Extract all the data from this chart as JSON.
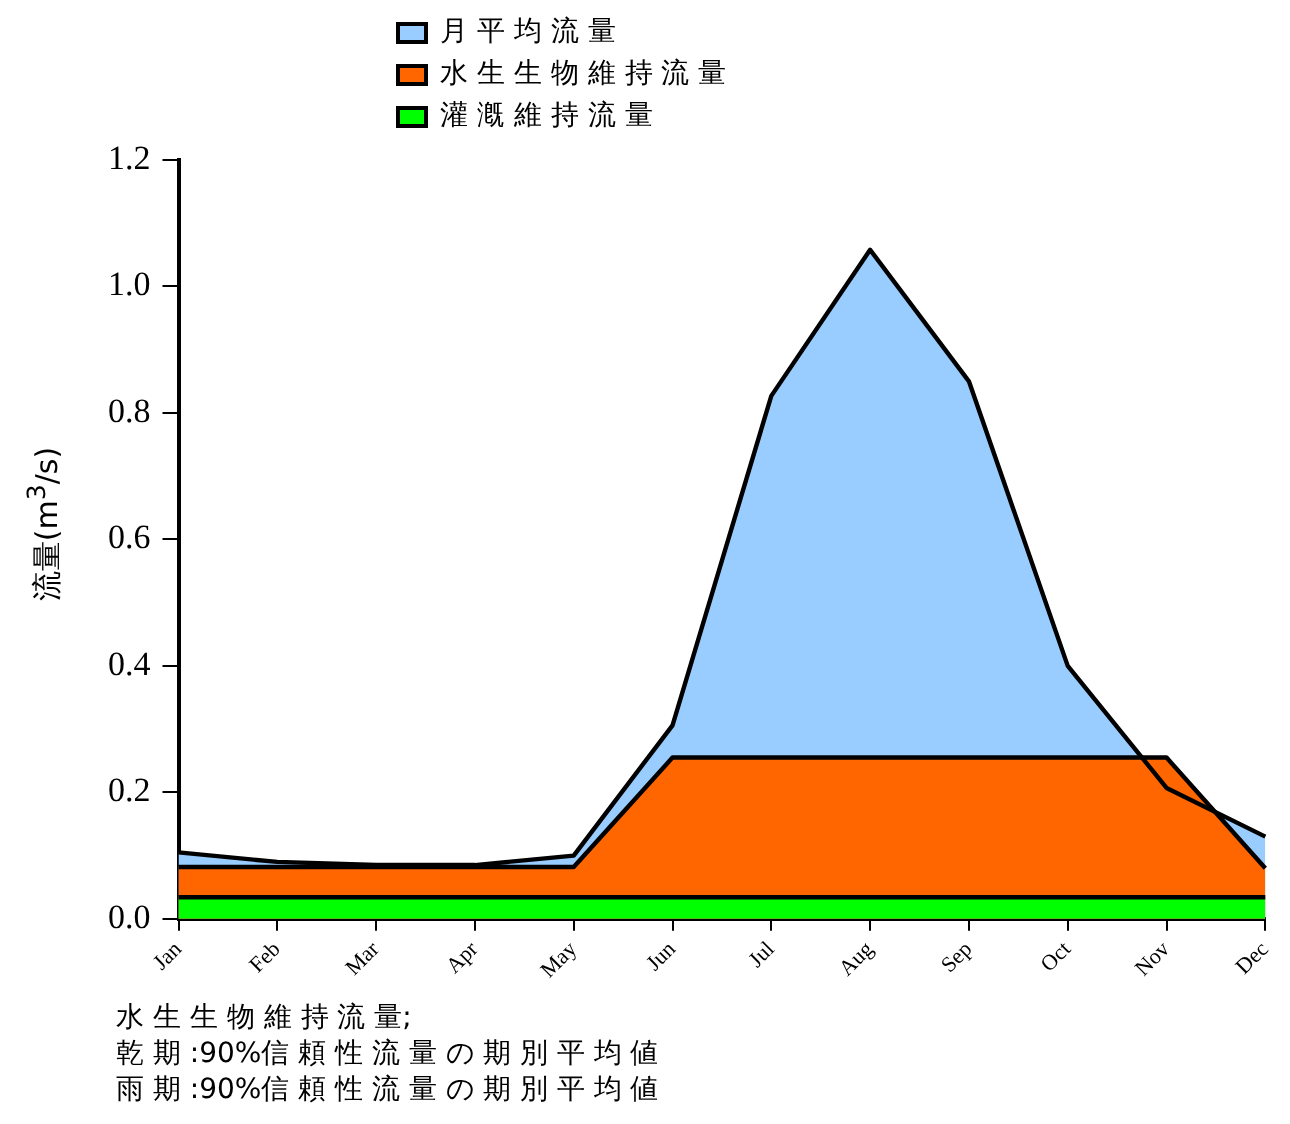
{
  "chart_data": {
    "type": "area",
    "ylabel": "流量(m$^{3}$/s)",
    "categories": [
      "Jan",
      "Feb",
      "Mar",
      "Apr",
      "May",
      "Jun",
      "Jul",
      "Aug",
      "Sep",
      "Oct",
      "Nov",
      "Dec"
    ],
    "series": [
      {
        "name": "月 平 均 流 量",
        "color": "#99ccff",
        "values": [
          0.105,
          0.09,
          0.085,
          0.085,
          0.1,
          0.306,
          0.827,
          1.058,
          0.85,
          0.4,
          0.207,
          0.13
        ]
      },
      {
        "name": "水 生 生 物 維 持 流 量",
        "color": "#ff6600",
        "values": [
          0.082,
          0.082,
          0.082,
          0.082,
          0.082,
          0.255,
          0.255,
          0.255,
          0.255,
          0.255,
          0.255,
          0.08
        ]
      },
      {
        "name": "灌 漑 維 持 流 量",
        "color": "#00ff00",
        "values": [
          0.034,
          0.034,
          0.034,
          0.034,
          0.034,
          0.034,
          0.034,
          0.034,
          0.034,
          0.034,
          0.034,
          0.034
        ]
      }
    ],
    "ylim": [
      0,
      1.2
    ],
    "yticks": [
      {
        "value": 0,
        "label": "0.0"
      },
      0.2,
      0.4,
      0.6,
      0.8,
      {
        "value": 1,
        "label": "1.0"
      },
      1.2
    ],
    "grid": false,
    "legend": "top",
    "marker": "none",
    "line_style": "solid",
    "annotations": [
      "水 生 生 物 維 持 流 量;",
      "乾 期 :90%信 頼 性 流 量 の 期 別 平 均 値",
      "雨 期 :90%信 頼 性 流 量 の 期 別 平 均 値"
    ]
  }
}
